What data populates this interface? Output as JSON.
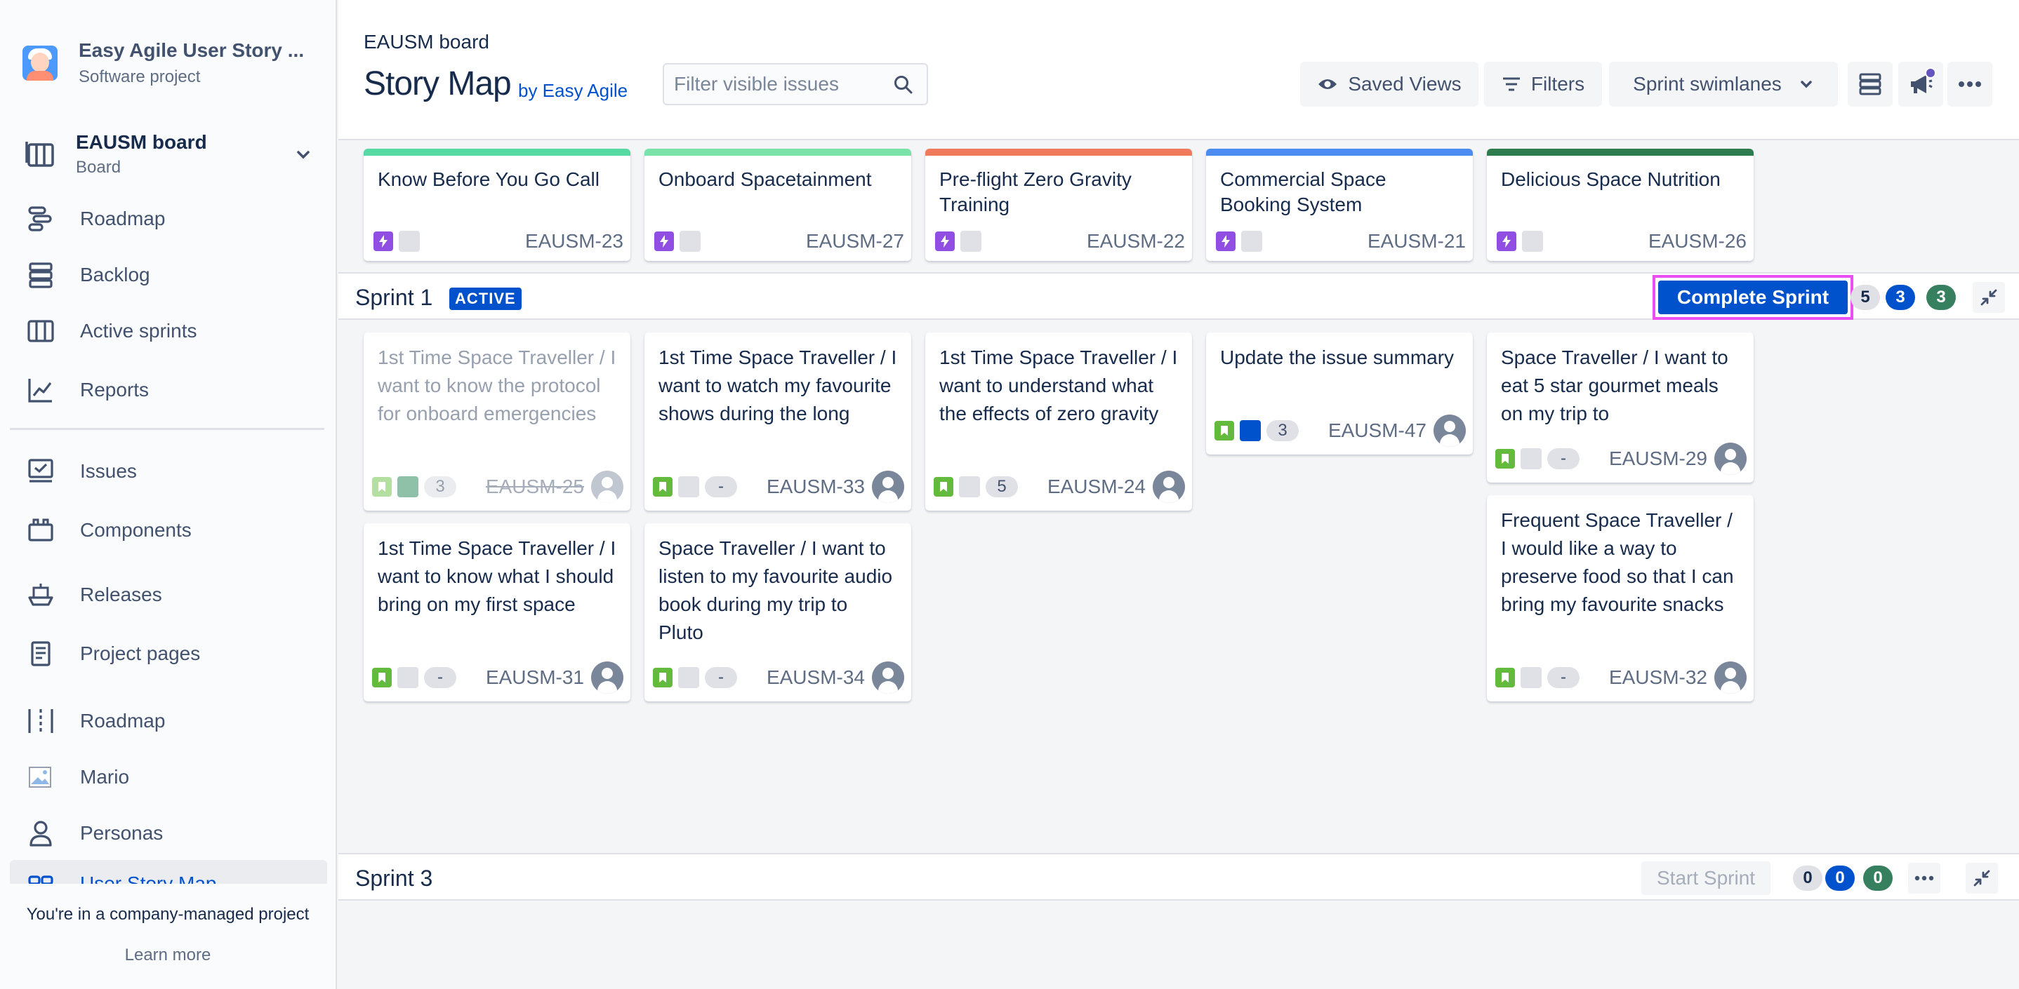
{
  "sidebar": {
    "project_name": "Easy Agile User Story ...",
    "project_type": "Software project",
    "board_title": "EAUSM board",
    "board_sub": "Board",
    "nav": [
      {
        "label": "Roadmap"
      },
      {
        "label": "Backlog"
      },
      {
        "label": "Active sprints"
      },
      {
        "label": "Reports"
      },
      {
        "label": "Issues"
      },
      {
        "label": "Components"
      },
      {
        "label": "Releases"
      },
      {
        "label": "Project pages"
      },
      {
        "label": "Roadmap"
      },
      {
        "label": "Mario"
      },
      {
        "label": "Personas"
      },
      {
        "label": "User Story Map"
      }
    ],
    "footer_text": "You're in a company-managed project",
    "footer_link": "Learn more"
  },
  "header": {
    "breadcrumb": "EAUSM board",
    "title": "Story Map",
    "subtitle": "by Easy Agile",
    "search_placeholder": "Filter visible issues",
    "saved_views": "Saved Views",
    "filters": "Filters",
    "swimlanes": "Sprint swimlanes"
  },
  "epics": [
    {
      "title": "Know Before You Go Call",
      "key": "EAUSM-23",
      "color": "#57d9a3"
    },
    {
      "title": "Onboard Spacetainment",
      "key": "EAUSM-27",
      "color": "#79e2a8"
    },
    {
      "title": "Pre-flight Zero Gravity Training",
      "key": "EAUSM-22",
      "color": "#f07a5c"
    },
    {
      "title": "Commercial Space Booking System",
      "key": "EAUSM-21",
      "color": "#4c8cf0"
    },
    {
      "title": "Delicious Space Nutrition",
      "key": "EAUSM-26",
      "color": "#2f7d4f"
    }
  ],
  "sprint1": {
    "name": "Sprint 1",
    "badge": "ACTIVE",
    "action": "Complete Sprint",
    "counts": [
      "5",
      "3",
      "3"
    ]
  },
  "sprint3": {
    "name": "Sprint 3",
    "action": "Start Sprint",
    "counts": [
      "0",
      "0",
      "0"
    ]
  },
  "stories": [
    {
      "title": "1st Time Space Traveller / I want to know the protocol for onboard emergencies",
      "key": "EAUSM-25",
      "points": "3",
      "done": true
    },
    {
      "title": "1st Time Space Traveller / I want to watch my favourite shows during the long",
      "key": "EAUSM-33",
      "points": "-",
      "done": false
    },
    {
      "title": "1st Time Space Traveller / I want to understand what the effects of zero gravity",
      "key": "EAUSM-24",
      "points": "5",
      "done": false
    },
    {
      "title": "Update the issue summary",
      "key": "EAUSM-47",
      "points": "3",
      "done": false
    },
    {
      "title": "Space Traveller / I want to eat 5 star gourmet meals on my trip to",
      "key": "EAUSM-29",
      "points": "-",
      "done": false
    },
    {
      "title": "1st Time Space Traveller / I want to know what I should bring on my first space",
      "key": "EAUSM-31",
      "points": "-",
      "done": false
    },
    {
      "title": "Space Traveller / I want to listen to my favourite audio book during my trip to Pluto",
      "key": "EAUSM-34",
      "points": "-",
      "done": false
    },
    {
      "title": "Frequent Space Traveller / I would like a way to preserve food so that I can bring my favourite snacks",
      "key": "EAUSM-32",
      "points": "-",
      "done": false
    }
  ]
}
